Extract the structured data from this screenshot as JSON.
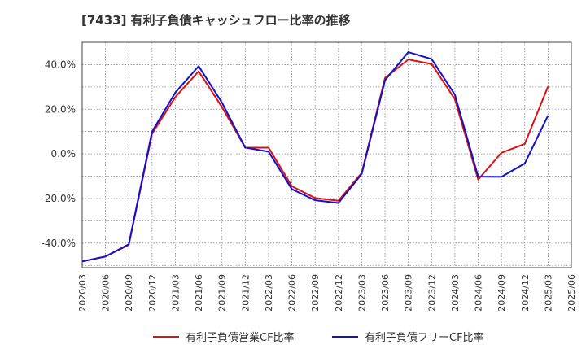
{
  "chart_data": {
    "type": "line",
    "title": "[7433]  有利子負債キャッシュフロー比率の推移",
    "xlabel": "",
    "ylabel": "",
    "ylim": [
      -51,
      50
    ],
    "yticks": [
      40,
      20,
      0,
      -20,
      -40
    ],
    "ytick_labels": [
      "40.0%",
      "20.0%",
      "0.0%",
      "-20.0%",
      "-40.0%"
    ],
    "x_labels": [
      "2020/03",
      "2020/06",
      "2020/09",
      "2020/12",
      "2021/03",
      "2021/06",
      "2021/09",
      "2021/12",
      "2022/03",
      "2022/06",
      "2022/09",
      "2022/12",
      "2023/03",
      "2023/06",
      "2023/09",
      "2023/12",
      "2024/03",
      "2024/06",
      "2024/09",
      "2024/12",
      "2025/03",
      "2025/06"
    ],
    "grid": true,
    "legend_position": "bottom",
    "series": [
      {
        "name": "有利子負債営業CF比率",
        "color": "#dd1111",
        "values": [
          -48.2,
          -46.0,
          -40.8,
          9.0,
          25.5,
          37.0,
          21.0,
          2.8,
          2.8,
          -14.5,
          -19.8,
          -21.0,
          -8.5,
          34.0,
          42.3,
          40.3,
          24.5,
          -11.5,
          0.5,
          4.5,
          30.2,
          null
        ]
      },
      {
        "name": "有利子負債フリーCF比率",
        "color": "#1111cc",
        "values": [
          -48.2,
          -46.0,
          -40.5,
          10.0,
          27.5,
          39.3,
          23.0,
          2.8,
          1.0,
          -15.8,
          -20.8,
          -22.0,
          -9.0,
          33.0,
          45.6,
          42.5,
          26.5,
          -10.2,
          -10.3,
          -4.3,
          17.2,
          null
        ]
      }
    ]
  }
}
